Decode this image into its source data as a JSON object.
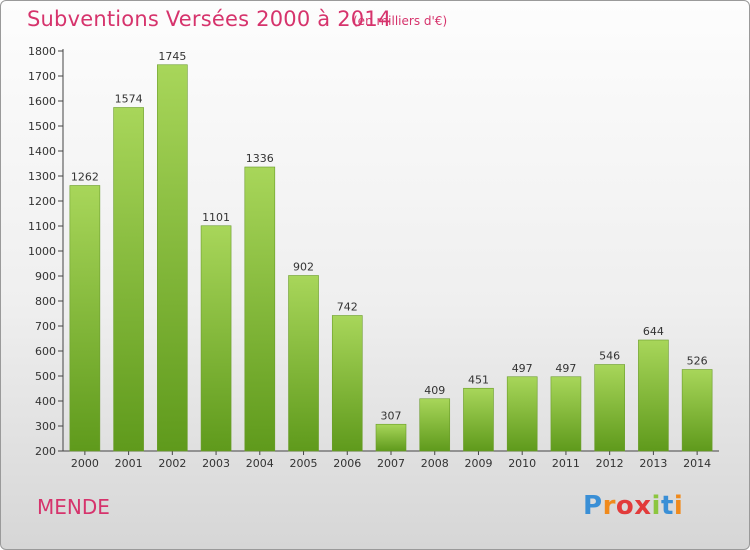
{
  "header": {
    "title": "Subventions Versées 2000 à 2014",
    "subtitle": "(en milliers d'€)"
  },
  "footer": {
    "commune": "MENDE",
    "logo_text": "Proxiti"
  },
  "colors": {
    "title": "#d6336c",
    "bar_top": "#a8d65a",
    "bar_bottom": "#5f9a1c",
    "logo": [
      "#3a8fd6",
      "#f08a1c",
      "#e23b3b",
      "#e23b3b",
      "#8cc63f",
      "#3a8fd6",
      "#f08a1c"
    ]
  },
  "chart_data": {
    "type": "bar",
    "title": "Subventions Versées 2000 à 2014",
    "subtitle": "(en milliers d'€)",
    "categories": [
      "2000",
      "2001",
      "2002",
      "2003",
      "2004",
      "2005",
      "2006",
      "2007",
      "2008",
      "2009",
      "2010",
      "2011",
      "2012",
      "2013",
      "2014"
    ],
    "values": [
      1262,
      1574,
      1745,
      1101,
      1336,
      902,
      742,
      307,
      409,
      451,
      497,
      497,
      546,
      644,
      526
    ],
    "value_labels": [
      "1262",
      "1574",
      "1745",
      "1101",
      "1336",
      "902",
      "742",
      "307",
      "409",
      "451",
      "497",
      "497",
      "546",
      "644",
      "526"
    ],
    "ylim": [
      200,
      1800
    ],
    "yticks": [
      200,
      300,
      400,
      500,
      600,
      700,
      800,
      900,
      1000,
      1100,
      1200,
      1300,
      1400,
      1500,
      1600,
      1700,
      1800
    ],
    "grid": false,
    "legend": "none"
  }
}
